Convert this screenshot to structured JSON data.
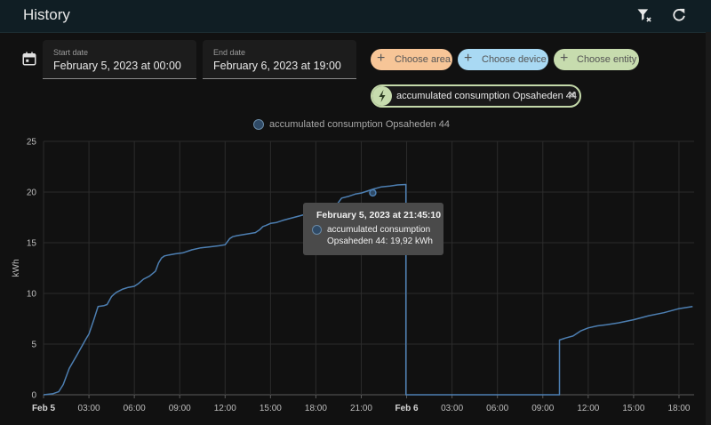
{
  "header": {
    "title": "History",
    "icons": [
      "filter-remove-icon",
      "refresh-icon"
    ]
  },
  "date_range": {
    "icon": "calendar-icon",
    "start": {
      "label": "Start date",
      "value": "February 5, 2023 at 00:00"
    },
    "end": {
      "label": "End date",
      "value": "February 6, 2023 at 19:00"
    }
  },
  "targets": {
    "choose_area": "Choose area",
    "choose_device": "Choose device",
    "choose_entity": "Choose entity",
    "area_color": "#f7c597",
    "device_color": "#a9d9f3",
    "entity_color": "#c7dcae",
    "selected_entity": {
      "icon": "lightning-bolt-icon",
      "label": "accumulated consumption Opsaheden 44",
      "remove_icon": "close-icon"
    }
  },
  "chart_data": {
    "type": "line",
    "title": "",
    "legend": [
      "accumulated consumption Opsaheden 44"
    ],
    "legend_position": "top-center",
    "ylabel": "kWh",
    "xlabel": "",
    "ylim": [
      0,
      25
    ],
    "y_ticks": [
      "0",
      "5",
      "10",
      "15",
      "20",
      "25"
    ],
    "x_ticks": [
      "Feb 5",
      "03:00",
      "06:00",
      "09:00",
      "12:00",
      "15:00",
      "18:00",
      "21:00",
      "Feb 6",
      "03:00",
      "06:00",
      "09:00",
      "12:00",
      "15:00",
      "18:00"
    ],
    "x_unit": "hours since Feb 5 00:00",
    "xlim": [
      0,
      43
    ],
    "grid": true,
    "line_color": "#4d7fb2",
    "series": [
      {
        "name": "accumulated consumption Opsaheden 44",
        "x": [
          0,
          0.6,
          1.0,
          1.3,
          1.7,
          2.2,
          2.8,
          3.0,
          3.3,
          3.6,
          4.0,
          4.2,
          4.5,
          4.8,
          5.2,
          5.6,
          6.0,
          6.3,
          6.6,
          7.0,
          7.4,
          7.6,
          7.8,
          8.0,
          8.3,
          8.7,
          9.2,
          9.8,
          10.4,
          11.0,
          11.6,
          12.0,
          12.3,
          12.5,
          12.8,
          13.2,
          13.6,
          14.0,
          14.3,
          14.5,
          14.7,
          15.0,
          15.4,
          15.8,
          16.3,
          16.8,
          17.3,
          17.8,
          18.2,
          18.6,
          19.0,
          19.4,
          19.7,
          20.2,
          20.6,
          21.0,
          21.4,
          21.8,
          22.3,
          22.9,
          23.4,
          23.95,
          23.95,
          27.0,
          30.0,
          32.0,
          34.1,
          34.1,
          34.5,
          35.0,
          35.5,
          36.0,
          36.6,
          37.2,
          38.0,
          39.0,
          40.0,
          41.0,
          42.0,
          42.9
        ],
        "y": [
          0,
          0.1,
          0.3,
          1.0,
          2.6,
          3.9,
          5.5,
          6.0,
          7.3,
          8.7,
          8.8,
          8.9,
          9.7,
          10.1,
          10.4,
          10.6,
          10.7,
          11.0,
          11.4,
          11.7,
          12.2,
          13.0,
          13.5,
          13.7,
          13.8,
          13.9,
          14.0,
          14.3,
          14.5,
          14.6,
          14.7,
          14.8,
          15.4,
          15.6,
          15.7,
          15.8,
          15.9,
          16.0,
          16.3,
          16.6,
          16.7,
          16.9,
          17.0,
          17.2,
          17.4,
          17.6,
          17.8,
          17.9,
          18.1,
          18.3,
          18.5,
          18.8,
          19.4,
          19.6,
          19.8,
          19.9,
          20.1,
          20.3,
          20.5,
          20.6,
          20.7,
          20.75,
          0,
          0,
          0,
          0,
          0,
          5.4,
          5.6,
          5.8,
          6.3,
          6.6,
          6.8,
          6.9,
          7.1,
          7.4,
          7.8,
          8.1,
          8.5,
          8.7
        ]
      }
    ],
    "highlight": {
      "x": 21.76,
      "y": 19.92
    },
    "tooltip": {
      "header": "February 5, 2023 at 21:45:10",
      "line1": "accumulated consumption",
      "line2": "Opsaheden 44: 19,92 kWh"
    }
  }
}
